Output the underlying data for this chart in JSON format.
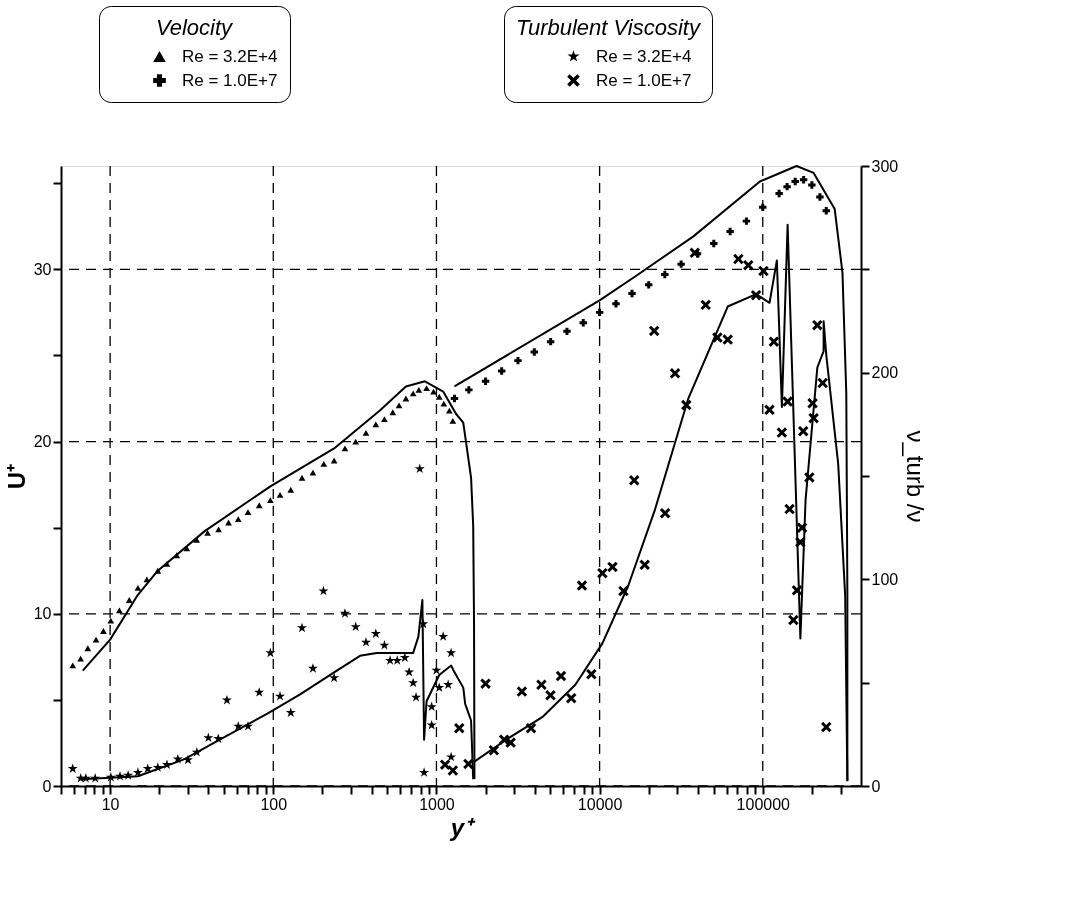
{
  "chart_data": {
    "type": "scatter",
    "xlabel": "y⁺",
    "ylabel": "U⁺",
    "y2label": "ν_turb /ν",
    "legend_title": "Velocity",
    "annotations": [
      "Turbulent Viscosity"
    ],
    "log": "x",
    "grid": true,
    "legend": "top",
    "xlim": [
      5,
      400000
    ],
    "xticks": [
      {
        "value": 5,
        "label": null
      },
      {
        "value": 6,
        "label": null
      },
      {
        "value": 7,
        "label": null
      },
      {
        "value": 8,
        "label": null
      },
      {
        "value": 9,
        "label": null
      },
      10,
      {
        "value": 20,
        "label": null
      },
      {
        "value": 30,
        "label": null
      },
      {
        "value": 40,
        "label": null
      },
      {
        "value": 50,
        "label": null
      },
      {
        "value": 60,
        "label": null
      },
      {
        "value": 70,
        "label": null
      },
      {
        "value": 80,
        "label": null
      },
      {
        "value": 90,
        "label": null
      },
      100,
      {
        "value": 200,
        "label": null
      },
      {
        "value": 300,
        "label": null
      },
      {
        "value": 400,
        "label": null
      },
      {
        "value": 500,
        "label": null
      },
      {
        "value": 600,
        "label": null
      },
      {
        "value": 700,
        "label": null
      },
      {
        "value": 800,
        "label": null
      },
      {
        "value": 900,
        "label": null
      },
      1000,
      {
        "value": 2000,
        "label": null
      },
      {
        "value": 3000,
        "label": null
      },
      {
        "value": 4000,
        "label": null
      },
      {
        "value": 5000,
        "label": null
      },
      {
        "value": 6000,
        "label": null
      },
      {
        "value": 7000,
        "label": null
      },
      {
        "value": 8000,
        "label": null
      },
      {
        "value": 9000,
        "label": null
      },
      10000,
      {
        "value": 20000,
        "label": null
      },
      {
        "value": 30000,
        "label": null
      },
      {
        "value": 40000,
        "label": null
      },
      {
        "value": 50000,
        "label": null
      },
      {
        "value": 60000,
        "label": null
      },
      {
        "value": 70000,
        "label": null
      },
      {
        "value": 80000,
        "label": null
      },
      {
        "value": 90000,
        "label": null
      },
      100000,
      {
        "value": 200000,
        "label": null
      },
      {
        "value": 300000,
        "label": null
      }
    ],
    "ylim": [
      0,
      36
    ],
    "yticks": [
      0,
      {
        "value": 5,
        "label": null
      },
      10,
      {
        "value": 15,
        "label": null
      },
      20,
      {
        "value": 25,
        "label": null
      },
      30,
      {
        "value": 35,
        "label": null
      }
    ],
    "y2lim": [
      0,
      300
    ],
    "y2ticks": [
      0,
      {
        "value": 50,
        "label": null
      },
      100,
      {
        "value": 150,
        "label": null
      },
      200,
      {
        "value": 250,
        "label": null
      },
      300
    ],
    "series": [
      {
        "name": "Re = 3.2E+4",
        "marker": "triangle",
        "color": "#000000",
        "x": [
          5.9,
          6.6,
          7.3,
          8.2,
          9.1,
          10.1,
          11.4,
          13.1,
          14.8,
          16.8,
          19.6,
          22.3,
          25.6,
          29.5,
          33.9,
          39.6,
          46.2,
          53.2,
          61,
          70,
          82,
          96,
          110,
          128,
          150,
          175,
          204,
          236,
          275,
          320,
          370,
          425,
          480,
          540,
          590,
          650,
          720,
          780,
          870,
          960,
          1040,
          1110,
          1200,
          1260
        ],
        "values": [
          7.0,
          7.4,
          8.0,
          8.5,
          9.0,
          9.6,
          10.2,
          10.8,
          11.5,
          12.0,
          12.5,
          12.9,
          13.4,
          13.8,
          14.3,
          14.7,
          14.9,
          15.3,
          15.5,
          15.9,
          16.3,
          16.6,
          16.9,
          17.2,
          17.9,
          18.2,
          18.7,
          18.9,
          19.6,
          20.0,
          20.5,
          21.0,
          21.3,
          21.7,
          22.1,
          22.5,
          22.8,
          23.0,
          23.1,
          22.9,
          22.6,
          22.2,
          21.8,
          21.2
        ]
      },
      {
        "name": "Re = 1.0E+7",
        "marker": "cross",
        "color": "#000000",
        "x": [
          1290,
          1580,
          2000,
          2510,
          3160,
          3980,
          5010,
          6310,
          7940,
          10000,
          12600,
          15800,
          20000,
          25100,
          31600,
          39800,
          50100,
          63100,
          79400,
          100000,
          126000,
          141000,
          158000,
          178000,
          200000,
          224000,
          245000
        ],
        "values": [
          22.5,
          23.0,
          23.5,
          24.1,
          24.7,
          25.2,
          25.8,
          26.4,
          26.9,
          27.5,
          28.0,
          28.6,
          29.1,
          29.7,
          30.3,
          30.9,
          31.5,
          32.2,
          32.8,
          33.6,
          34.4,
          34.8,
          35.1,
          35.2,
          34.9,
          34.2,
          33.4
        ]
      },
      {
        "type": "line",
        "line_style": "solid",
        "color": "#000000",
        "x": [
          6.8,
          10,
          14.8,
          19.6,
          38,
          96,
          236,
          450,
          650,
          850,
          1100,
          1320,
          1460,
          1630,
          1680,
          1700,
          1710
        ],
        "values": [
          6.7,
          8.5,
          11.1,
          12.5,
          14.8,
          17.4,
          19.6,
          21.8,
          23.2,
          23.5,
          22.9,
          21.6,
          21.1,
          17.9,
          15.1,
          9.4,
          0.4
        ]
      },
      {
        "type": "line",
        "line_style": "solid",
        "color": "#000000",
        "x": [
          1290,
          10000,
          16600,
          37400,
          96000,
          161000,
          205000,
          276000,
          308000,
          325000,
          330000,
          330000
        ],
        "values": [
          23.2,
          28.2,
          29.6,
          31.9,
          35.1,
          36.0,
          35.6,
          33.5,
          29.8,
          22.8,
          11.1,
          0.3
        ]
      },
      {
        "name": "Re = 3.2E+4",
        "axis": "y2",
        "marker": "star",
        "color": "#000000",
        "x": [
          5.9,
          6.6,
          7.1,
          8.1,
          10.1,
          11.5,
          12.9,
          14.8,
          17.0,
          19.6,
          22.3,
          26,
          30,
          34,
          40,
          46,
          52,
          61,
          70,
          82,
          96,
          110,
          128,
          150,
          175,
          203,
          236,
          275,
          320,
          370,
          425,
          480,
          520,
          575,
          640,
          680,
          720,
          750,
          790,
          830,
          840,
          935,
          935,
          1000,
          1100,
          1230,
          1180,
          1040,
          1230
        ],
        "values": [
          8.4,
          3.7,
          3.7,
          3.7,
          4.2,
          4.7,
          5.1,
          6.5,
          8.4,
          8.9,
          10.3,
          13,
          12.6,
          16.3,
          23.3,
          22.9,
          41.5,
          28.9,
          28.9,
          45.3,
          64.4,
          43.4,
          35.5,
          76.5,
          56.9,
          94.3,
          52.3,
          83.5,
          77.0,
          69.5,
          73.7,
          68.1,
          60.7,
          60.7,
          62.1,
          55.1,
          49.9,
          42.9,
          153.5,
          78.4,
          6.5,
          38.3,
          29.4,
          56,
          72.3,
          64.4,
          49,
          47.6,
          14.0
        ]
      },
      {
        "name": "Re = 1.0E+7",
        "axis": "y2",
        "marker": "x",
        "color": "#000000",
        "x": [
          1130,
          1260,
          1380,
          1570,
          2000,
          2250,
          2600,
          2850,
          3340,
          3800,
          4400,
          5000,
          5800,
          6700,
          8900,
          7800,
          10400,
          12000,
          14000,
          16300,
          18900,
          25200,
          29000,
          34000,
          21600,
          44700,
          38300,
          52700,
          61000,
          70900,
          81500,
          91000,
          101000,
          117000,
          110000,
          131000,
          142000,
          146000,
          154000,
          162000,
          170000,
          174000,
          177000,
          193000,
          205000,
          202000,
          233000,
          216000,
          245000
        ],
        "values": [
          10.3,
          7.5,
          28,
          10.7,
          49.5,
          17.3,
          22.4,
          21,
          45.7,
          28,
          49,
          43.9,
          53.2,
          42.5,
          54.1,
          97,
          103,
          106,
          94.3,
          147.9,
          107,
          132,
          199.7,
          184.3,
          220.2,
          232.8,
          258,
          217,
          216,
          255,
          252,
          237.5,
          249.2,
          215,
          182,
          171,
          186,
          134,
          80.3,
          94.7,
          118,
          125,
          171.7,
          149.3,
          178,
          185.2,
          195,
          223,
          28.5
        ]
      },
      {
        "type": "line",
        "axis": "y2",
        "line_style": "solid",
        "color": "#000000",
        "x": [
          6.7,
          14.8,
          28.6,
          47,
          92,
          146,
          236,
          340,
          430,
          720,
          775,
          820,
          840,
          870,
          1040,
          1230,
          1290,
          1460,
          1500,
          1630,
          1680
        ],
        "values": [
          3.3,
          4.7,
          13,
          22.4,
          35,
          44.3,
          55,
          63,
          64.4,
          64.4,
          72.3,
          90,
          22.4,
          41,
          53.7,
          58.3,
          55,
          47.6,
          39.7,
          31.7,
          3.3
        ]
      },
      {
        "type": "line",
        "axis": "y2",
        "line_style": "solid",
        "color": "#000000",
        "x": [
          1700,
          2670,
          4500,
          7100,
          10400,
          15000,
          21900,
          35000,
          61000,
          91000,
          110000,
          122000,
          131000,
          142000,
          170000,
          183000,
          216000,
          236000,
          236000,
          245000,
          290000,
          320000,
          330000
        ],
        "values": [
          11.7,
          22.4,
          33.6,
          49,
          69,
          97,
          134,
          187.6,
          232,
          238,
          233.8,
          254.3,
          183.4,
          271.6,
          71.4,
          138.6,
          202.5,
          210.4,
          224.9,
          208.6,
          155.8,
          91.9,
          2.3
        ]
      }
    ]
  }
}
